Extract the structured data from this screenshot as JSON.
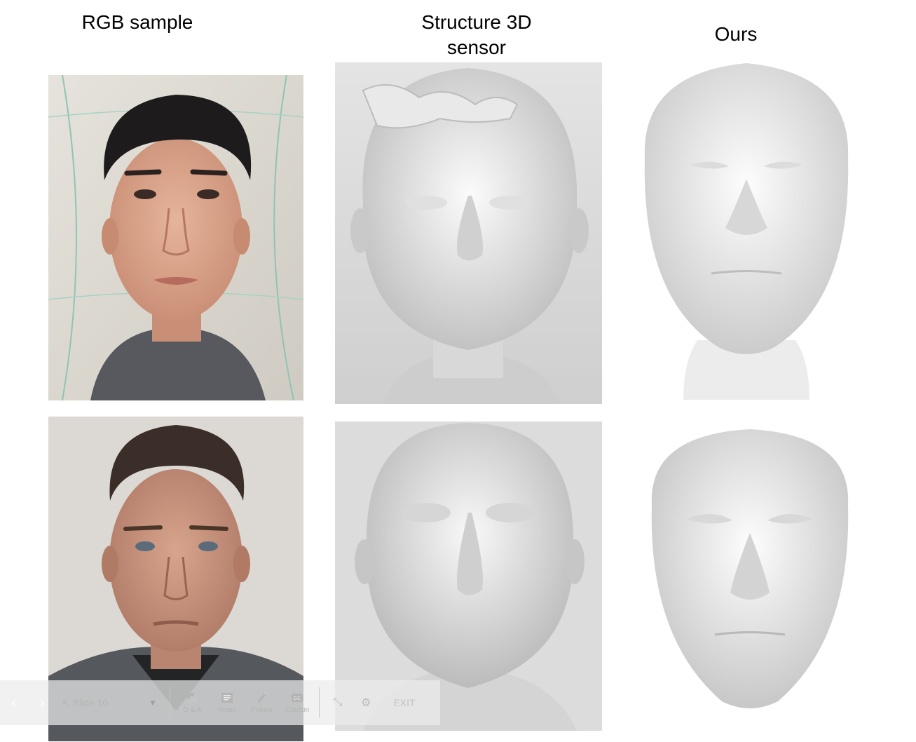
{
  "columns": {
    "rgb": "RGB sample",
    "sensor_line1": "Structure 3D",
    "sensor_line2": "sensor",
    "ours": "Ours"
  },
  "toolbar": {
    "slide_label": "Slide 10",
    "qa_label": "Q & A",
    "notes_label": "Notes",
    "pointer_label": "Pointer",
    "caption_label": "Caption",
    "exit_label": "EXIT"
  },
  "icons": {
    "prev": "chevron-left-icon",
    "next": "chevron-right-icon",
    "dropdown": "chevron-down-icon",
    "qa": "chat-bubbles-icon",
    "notes": "notes-icon",
    "pointer": "laser-pointer-icon",
    "caption": "cc-icon",
    "shrink": "shrink-icon",
    "settings": "gear-icon"
  }
}
